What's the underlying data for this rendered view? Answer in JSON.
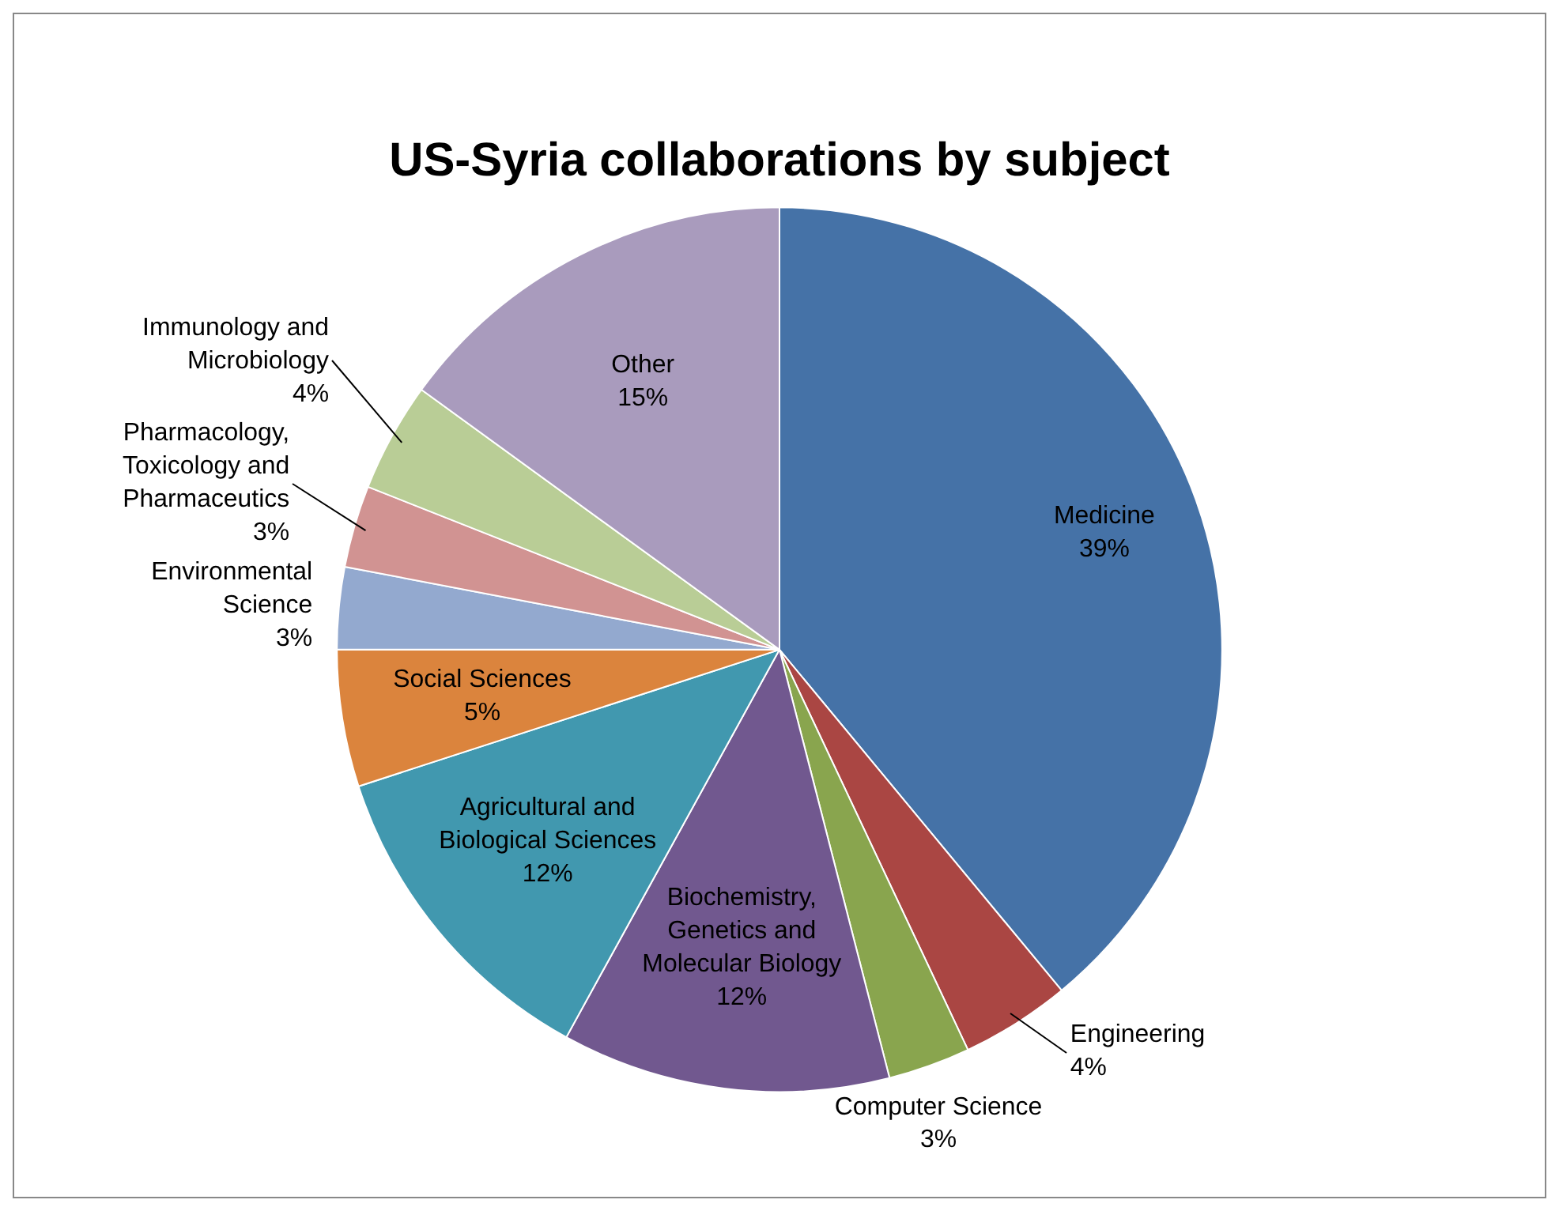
{
  "chart_data": {
    "type": "pie",
    "title": "US-Syria collaborations by subject",
    "categories": [
      "Medicine",
      "Engineering",
      "Computer Science",
      "Biochemistry, Genetics and Molecular Biology",
      "Agricultural and Biological Sciences",
      "Social Sciences",
      "Environmental Science",
      "Pharmacology, Toxicology and Pharmaceutics",
      "Immunology and Microbiology",
      "Other"
    ],
    "values": [
      39,
      4,
      3,
      12,
      12,
      5,
      3,
      3,
      4,
      15
    ],
    "colors": [
      "#4572a7",
      "#aa4643",
      "#89a54e",
      "#71588f",
      "#4198af",
      "#db843d",
      "#93a9cf",
      "#d19392",
      "#b9cd96",
      "#a99bbd"
    ],
    "value_labels": [
      "39%",
      "4%",
      "3%",
      "12%",
      "12%",
      "5%",
      "3%",
      "3%",
      "4%",
      "15%"
    ],
    "legend": false
  }
}
